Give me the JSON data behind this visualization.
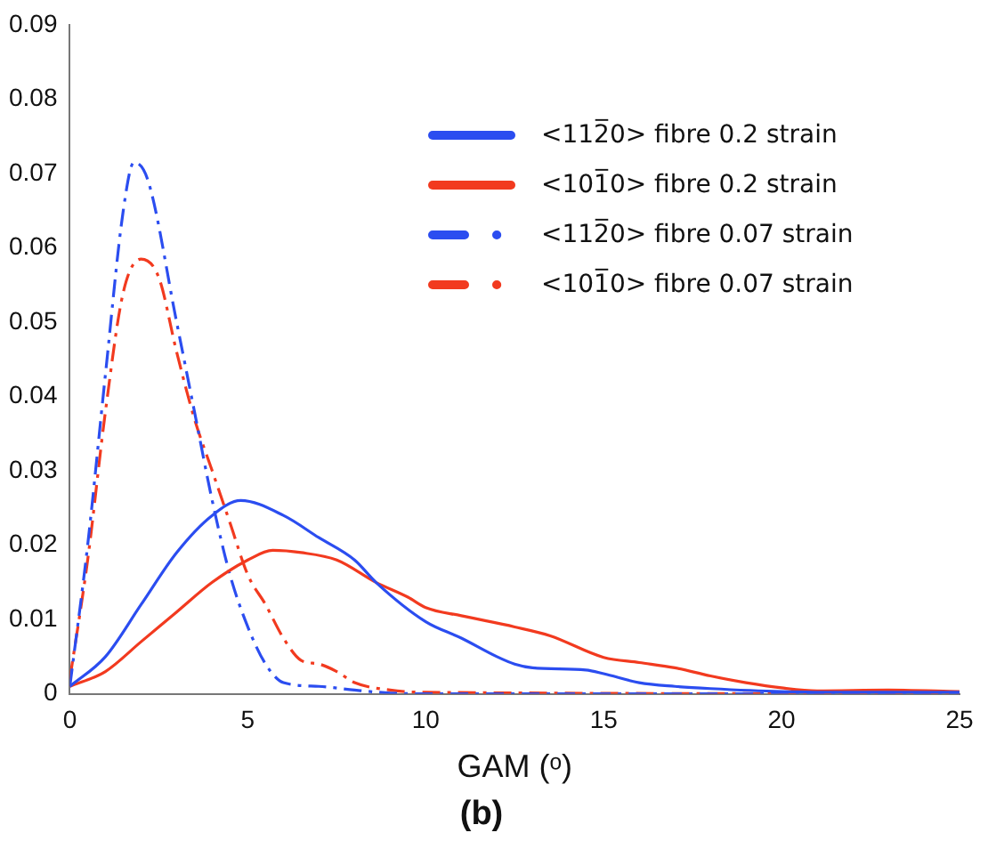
{
  "chart_data": {
    "type": "line",
    "title": "(b)",
    "xlabel": "GAM (ᵒ)",
    "xlim": [
      0,
      25
    ],
    "xticks": [
      0,
      5,
      10,
      15,
      20,
      25
    ],
    "ylim": [
      0,
      0.09
    ],
    "yticks": [
      0,
      0.01,
      0.02,
      0.03,
      0.04,
      0.05,
      0.06,
      0.07,
      0.08,
      0.09
    ],
    "grid": false,
    "legend": "top right",
    "marker": "none",
    "series": [
      {
        "name": "<112̅0> fibre 0.2 strain",
        "color": "#2b4df0",
        "line_style": "solid",
        "x": [
          0,
          1,
          2,
          3,
          4,
          4.8,
          6,
          7,
          8,
          8.6,
          10,
          11,
          12,
          12.5,
          13,
          14.5,
          15,
          16,
          17,
          18,
          20,
          22,
          25
        ],
        "values": [
          0.001,
          0.005,
          0.012,
          0.019,
          0.024,
          0.026,
          0.024,
          0.021,
          0.018,
          0.015,
          0.0097,
          0.0075,
          0.005,
          0.004,
          0.0035,
          0.0032,
          0.0027,
          0.0015,
          0.001,
          0.0007,
          0.0003,
          0.0002,
          0.0002
        ]
      },
      {
        "name": "<101̅0> fibre 0.2 strain",
        "color": "#f23a1f",
        "line_style": "solid",
        "x": [
          0,
          1,
          2,
          3,
          4,
          5,
          5.7,
          6.5,
          7.5,
          8.6,
          9.5,
          10,
          11,
          12.5,
          13.5,
          15,
          16,
          17,
          18,
          19,
          20,
          21,
          23,
          25
        ],
        "values": [
          0.001,
          0.003,
          0.007,
          0.011,
          0.015,
          0.018,
          0.0193,
          0.019,
          0.018,
          0.015,
          0.013,
          0.0116,
          0.0105,
          0.009,
          0.0078,
          0.0049,
          0.0042,
          0.0035,
          0.0024,
          0.0015,
          0.0008,
          0.0004,
          0.0005,
          0.0003
        ]
      },
      {
        "name": "<112̅0> fibre 0.07 strain",
        "color": "#2b4df0",
        "line_style": "dashed",
        "x": [
          0,
          0.5,
          1,
          1.5,
          1.8,
          2.2,
          3,
          3.5,
          4,
          4.5,
          5,
          5.5,
          6,
          7,
          8,
          9,
          10,
          25
        ],
        "values": [
          0.001,
          0.02,
          0.043,
          0.065,
          0.0715,
          0.069,
          0.05,
          0.038,
          0.026,
          0.016,
          0.009,
          0.004,
          0.0015,
          0.001,
          0.0005,
          0.0001,
          0,
          0
        ]
      },
      {
        "name": "<101̅0> fibre 0.07 strain",
        "color": "#f23a1f",
        "line_style": "dashed",
        "x": [
          0,
          0.5,
          1,
          1.5,
          2,
          2.5,
          3,
          3.5,
          4,
          4.5,
          5,
          5.5,
          6,
          6.5,
          7,
          7.5,
          8,
          9,
          10,
          25
        ],
        "values": [
          0.002,
          0.018,
          0.038,
          0.054,
          0.0585,
          0.056,
          0.046,
          0.037,
          0.03,
          0.023,
          0.016,
          0.012,
          0.0075,
          0.0045,
          0.004,
          0.003,
          0.0015,
          0.0005,
          0.0002,
          0
        ]
      }
    ]
  }
}
